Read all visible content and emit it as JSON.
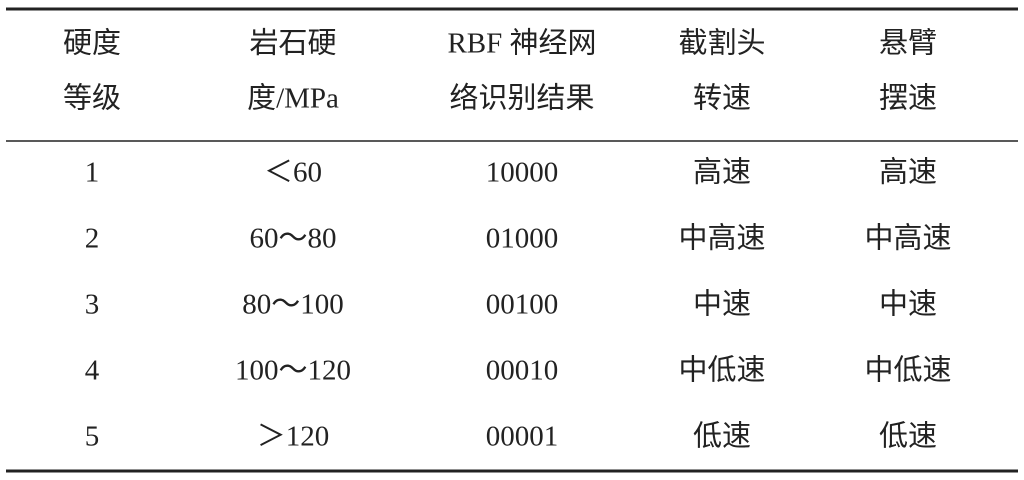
{
  "table": {
    "header": [
      [
        "硬度",
        "等级"
      ],
      [
        "岩石硬",
        "度/MPa"
      ],
      [
        "RBF 神经网",
        "络识别结果"
      ],
      [
        "截割头",
        "转速"
      ],
      [
        "悬臂",
        "摆速"
      ]
    ],
    "rows": [
      [
        "1",
        "＜60",
        "10000",
        "高速",
        "高速"
      ],
      [
        "2",
        "60～80",
        "01000",
        "中高速",
        "中高速"
      ],
      [
        "3",
        "80～100",
        "00100",
        "中速",
        "中速"
      ],
      [
        "4",
        "100～120",
        "00010",
        "中低速",
        "中低速"
      ],
      [
        "5",
        "＞120",
        "00001",
        "低速",
        "低速"
      ]
    ]
  }
}
